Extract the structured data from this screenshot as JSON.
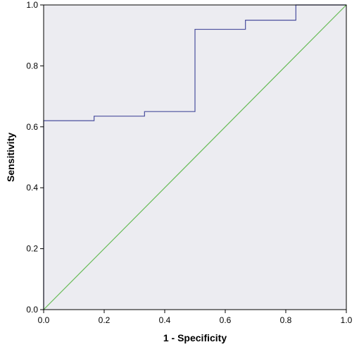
{
  "chart_data": {
    "type": "line",
    "title": "",
    "xlabel": "1 - Specificity",
    "ylabel": "Sensitivity",
    "xlim": [
      0,
      1
    ],
    "ylim": [
      0,
      1
    ],
    "x_ticks": [
      "0.0",
      "0.2",
      "0.4",
      "0.6",
      "0.8",
      "1.0"
    ],
    "y_ticks": [
      "0.0",
      "0.2",
      "0.4",
      "0.6",
      "0.8",
      "1.0"
    ],
    "grid": false,
    "legend": "none",
    "plot_background": "#ececf1",
    "series": [
      {
        "color": "#4a4f9e",
        "step": true,
        "x": [
          0.0,
          0.0,
          0.1667,
          0.1667,
          0.3333,
          0.3333,
          0.5,
          0.5,
          0.6667,
          0.6667,
          0.8333,
          0.8333,
          1.0
        ],
        "y": [
          0.0,
          0.62,
          0.62,
          0.635,
          0.635,
          0.65,
          0.65,
          0.92,
          0.92,
          0.95,
          0.95,
          1.0,
          1.0
        ]
      },
      {
        "color": "#66bb55",
        "step": false,
        "x": [
          0.0,
          1.0
        ],
        "y": [
          0.0,
          1.0
        ]
      }
    ]
  }
}
